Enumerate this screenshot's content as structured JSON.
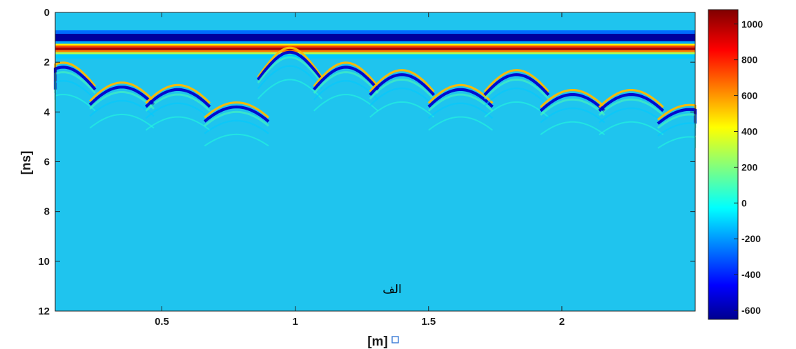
{
  "chart_data": {
    "type": "heatmap",
    "title": "",
    "xlabel": "[m]",
    "ylabel": "[ns]",
    "xlim": [
      0.1,
      2.5
    ],
    "ylim": [
      12,
      0
    ],
    "x_ticks": [
      0.5,
      1,
      1.5,
      2
    ],
    "y_ticks": [
      0,
      2,
      4,
      6,
      8,
      10,
      12
    ],
    "colorbar": {
      "colormap": "jet",
      "range": [
        -650,
        1080
      ],
      "ticks": [
        -600,
        -400,
        -200,
        0,
        200,
        400,
        600,
        800,
        1000
      ]
    },
    "direct_wave": {
      "negative_peak_ns": 1.0,
      "positive_peak_ns": 1.45,
      "amplitude_min": -600,
      "amplitude_max": 1000
    },
    "hyperbola_apexes": [
      {
        "x": 0.13,
        "t": 2.2
      },
      {
        "x": 0.35,
        "t": 3.0
      },
      {
        "x": 0.56,
        "t": 3.1
      },
      {
        "x": 0.78,
        "t": 3.8
      },
      {
        "x": 0.98,
        "t": 1.6
      },
      {
        "x": 1.19,
        "t": 2.2
      },
      {
        "x": 1.4,
        "t": 2.5
      },
      {
        "x": 1.62,
        "t": 3.1
      },
      {
        "x": 1.83,
        "t": 2.5
      },
      {
        "x": 2.04,
        "t": 3.3
      },
      {
        "x": 2.26,
        "t": 3.3
      },
      {
        "x": 2.48,
        "t": 3.9
      }
    ],
    "annotation": "الف"
  }
}
